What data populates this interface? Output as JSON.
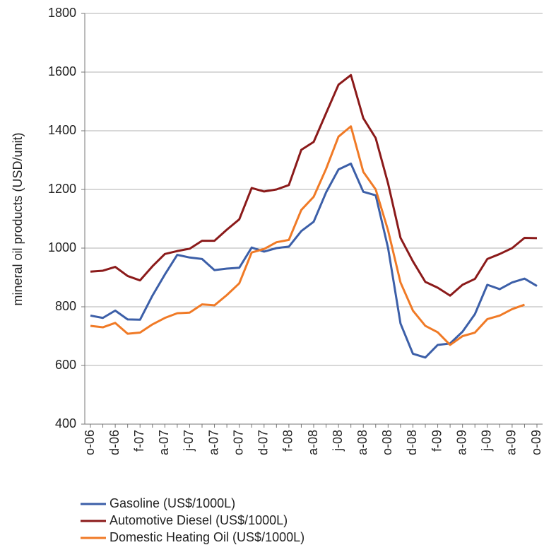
{
  "chart_data": {
    "type": "line",
    "y_label": "mineral oil products (USD/unit)",
    "categories": [
      "o-06",
      null,
      "d-06",
      null,
      "f-07",
      null,
      "a-07",
      null,
      "j-07",
      null,
      "a-07",
      null,
      "o-07",
      null,
      "d-07",
      null,
      "f-08",
      null,
      "a-08",
      null,
      "j-08",
      null,
      "a-08",
      null,
      "o-08",
      null,
      "d-08",
      null,
      "f-09",
      null,
      "a-09",
      null,
      "j-09",
      null,
      "a-09",
      null,
      "o-09"
    ],
    "series": [
      {
        "name": "Gasoline (US$/1000L)",
        "color": "#3c5fa8",
        "values": [
          770,
          762,
          787,
          757,
          756,
          838,
          910,
          977,
          968,
          963,
          925,
          930,
          933,
          1002,
          988,
          1000,
          1005,
          1058,
          1090,
          1190,
          1268,
          1288,
          1192,
          1180,
          1000,
          743,
          640,
          627,
          670,
          675,
          715,
          775,
          875,
          860,
          883,
          896,
          871
        ]
      },
      {
        "name": "Automotive Diesel (US$/1000L)",
        "color": "#8b1a1a",
        "values": [
          920,
          923,
          936,
          905,
          890,
          938,
          980,
          990,
          998,
          1025,
          1025,
          1063,
          1098,
          1205,
          1193,
          1200,
          1215,
          1335,
          1362,
          1460,
          1557,
          1590,
          1443,
          1375,
          1220,
          1035,
          955,
          885,
          865,
          838,
          875,
          895,
          963,
          980,
          1000,
          1035,
          1034
        ]
      },
      {
        "name": "Domestic Heating Oil (US$/1000L)",
        "color": "#f07a26",
        "values": [
          735,
          730,
          745,
          708,
          712,
          740,
          762,
          778,
          780,
          808,
          805,
          840,
          880,
          985,
          997,
          1020,
          1028,
          1130,
          1175,
          1270,
          1380,
          1415,
          1260,
          1200,
          1060,
          883,
          787,
          735,
          713,
          670,
          700,
          712,
          758,
          770,
          792,
          807,
          null
        ]
      }
    ],
    "ylim": [
      400,
      1800
    ],
    "yticks": [
      400,
      600,
      800,
      1000,
      1200,
      1400,
      1600,
      1800
    ],
    "grid": true
  }
}
